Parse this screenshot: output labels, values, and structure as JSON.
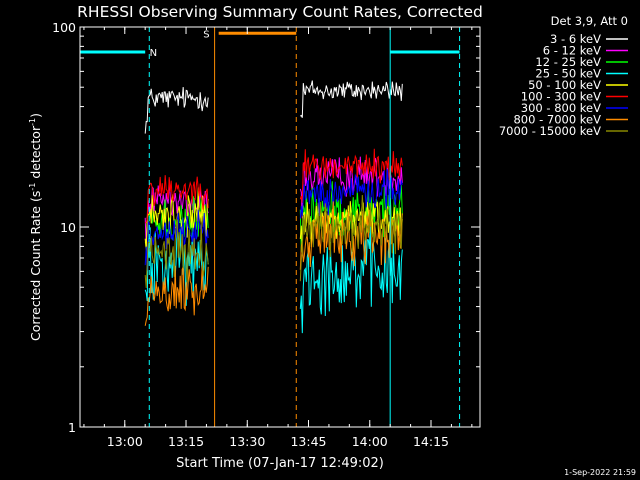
{
  "chart_data": {
    "type": "line",
    "title": "RHESSI Observing Summary Count Rates, Corrected",
    "xlabel": "Start Time (07-Jan-17 12:49:02)",
    "ylabel_main": "Corrected Count Rate (s",
    "ylabel_sup1": "-1",
    "ylabel_mid": " detector",
    "ylabel_sup2": "-1",
    "ylabel_end": ")",
    "x_units": "minutes",
    "xlim": [
      "12:49:02",
      "14:27:00"
    ],
    "ylim": [
      1,
      100
    ],
    "yscale": "log",
    "x_ticks": [
      "13:00",
      "13:15",
      "13:30",
      "13:45",
      "14:00",
      "14:15"
    ],
    "y_ticks": [
      "1",
      "10",
      "100"
    ],
    "legend_title": "Det 3,9, Att 0",
    "legend_position": "right",
    "timestamp": "1-Sep-2022 21:59",
    "segments": [
      {
        "start": "13:05:00",
        "end": "13:20:30"
      },
      {
        "start": "13:43:00",
        "end": "14:08:00"
      }
    ],
    "series": [
      {
        "name": "3 - 6 keV",
        "color": "#ffffff",
        "levels": [
          44,
          48
        ],
        "noise": 0.035
      },
      {
        "name": "6 - 12 keV",
        "color": "#ff00ff",
        "levels": [
          13.0,
          18.0
        ],
        "noise": 0.06
      },
      {
        "name": "12 - 25 keV",
        "color": "#00ff00",
        "levels": [
          11.0,
          12.0
        ],
        "noise": 0.08
      },
      {
        "name": "25 - 50 keV",
        "color": "#00ffff",
        "levels": [
          6.5,
          6.0
        ],
        "noise": 0.12
      },
      {
        "name": "50 - 100 keV",
        "color": "#ffff00",
        "levels": [
          11.5,
          11.0
        ],
        "noise": 0.07
      },
      {
        "name": "100 - 300 keV",
        "color": "#ff0000",
        "levels": [
          15.5,
          20.0
        ],
        "noise": 0.05
      },
      {
        "name": "300 - 800 keV",
        "color": "#0000ff",
        "levels": [
          9.5,
          15.0
        ],
        "noise": 0.06
      },
      {
        "name": "800 - 7000 keV",
        "color": "#ff8c00",
        "levels": [
          4.7,
          9.0
        ],
        "noise": 0.09
      },
      {
        "name": "7000 - 15000 keV",
        "color": "#888800",
        "levels": [
          7.5,
          10.0
        ],
        "noise": 0.08
      }
    ],
    "annotations": [
      {
        "label": "N",
        "color": "#00ffff",
        "bar": [
          "12:49:02",
          "13:05:00"
        ],
        "y": 75,
        "label_x": "13:07:00"
      },
      {
        "label": "S",
        "color": "#ff8c00",
        "bar": [
          "13:23:00",
          "13:42:00"
        ],
        "y": 93,
        "label_x": "13:20:00"
      },
      {
        "label": "",
        "color": "#00ffff",
        "bar": [
          "14:05:00",
          "14:22:00"
        ],
        "y": 75,
        "label_x": ""
      }
    ],
    "vlines": [
      {
        "time": "12:49:02",
        "color": "#00ffff",
        "style": "solid"
      },
      {
        "time": "13:06:00",
        "color": "#00ffff",
        "style": "dashed"
      },
      {
        "time": "13:22:00",
        "color": "#ff8c00",
        "style": "solid"
      },
      {
        "time": "13:42:00",
        "color": "#ff8c00",
        "style": "dashed"
      },
      {
        "time": "14:05:00",
        "color": "#00ffff",
        "style": "solid"
      },
      {
        "time": "14:22:00",
        "color": "#00ffff",
        "style": "dashed"
      }
    ]
  }
}
